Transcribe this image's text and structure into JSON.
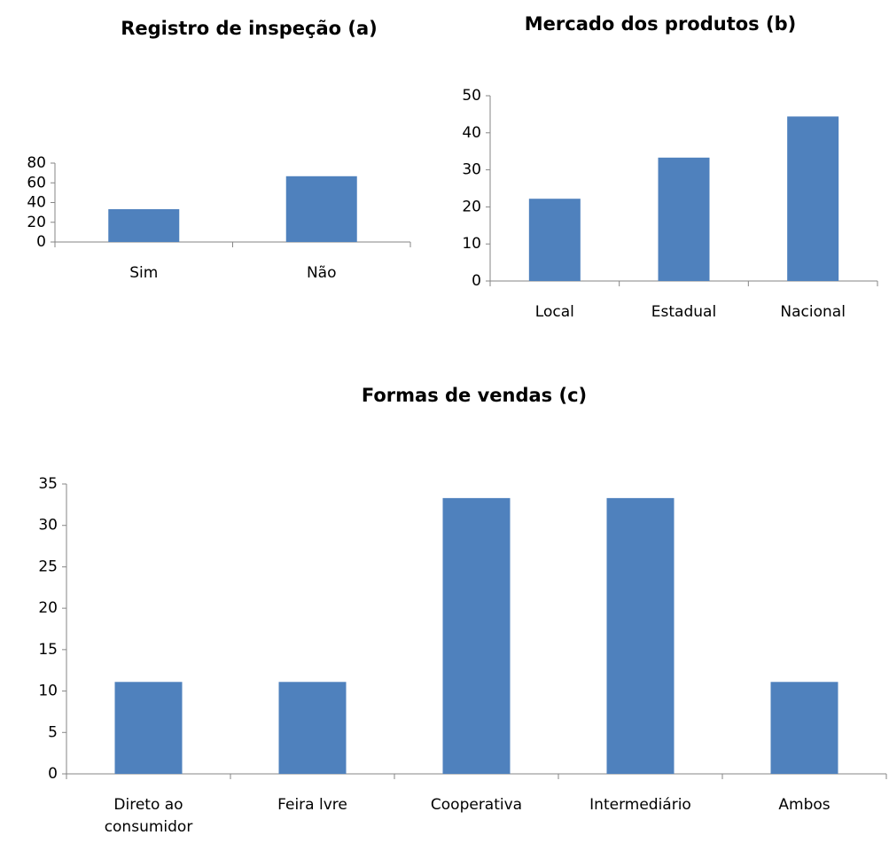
{
  "chart_data": [
    {
      "type": "bar",
      "title": "Registro de inspeção (a)",
      "categories": [
        "Sim",
        "Não"
      ],
      "values": [
        33.3,
        66.7
      ],
      "color": "#4f81bd",
      "ylim": [
        0,
        80
      ],
      "yticks": [
        0,
        20,
        40,
        60,
        80
      ],
      "grid": false
    },
    {
      "type": "bar",
      "title": "Mercado dos produtos (b)",
      "categories": [
        "Local",
        "Estadual",
        "Nacional"
      ],
      "values": [
        22.2,
        33.3,
        44.4
      ],
      "color": "#4f81bd",
      "ylim": [
        0,
        50
      ],
      "yticks": [
        0,
        10,
        20,
        30,
        40,
        50
      ],
      "grid": false
    },
    {
      "type": "bar",
      "title": "Formas de vendas (c)",
      "categories": [
        "Direto ao consumidor",
        "Feira lvre",
        "Cooperativa",
        "Intermediário",
        "Ambos"
      ],
      "values": [
        11.1,
        11.1,
        33.3,
        33.3,
        11.1
      ],
      "color": "#4f81bd",
      "ylim": [
        0,
        35
      ],
      "yticks": [
        0,
        5,
        10,
        15,
        20,
        25,
        30,
        35
      ],
      "grid": false
    }
  ]
}
